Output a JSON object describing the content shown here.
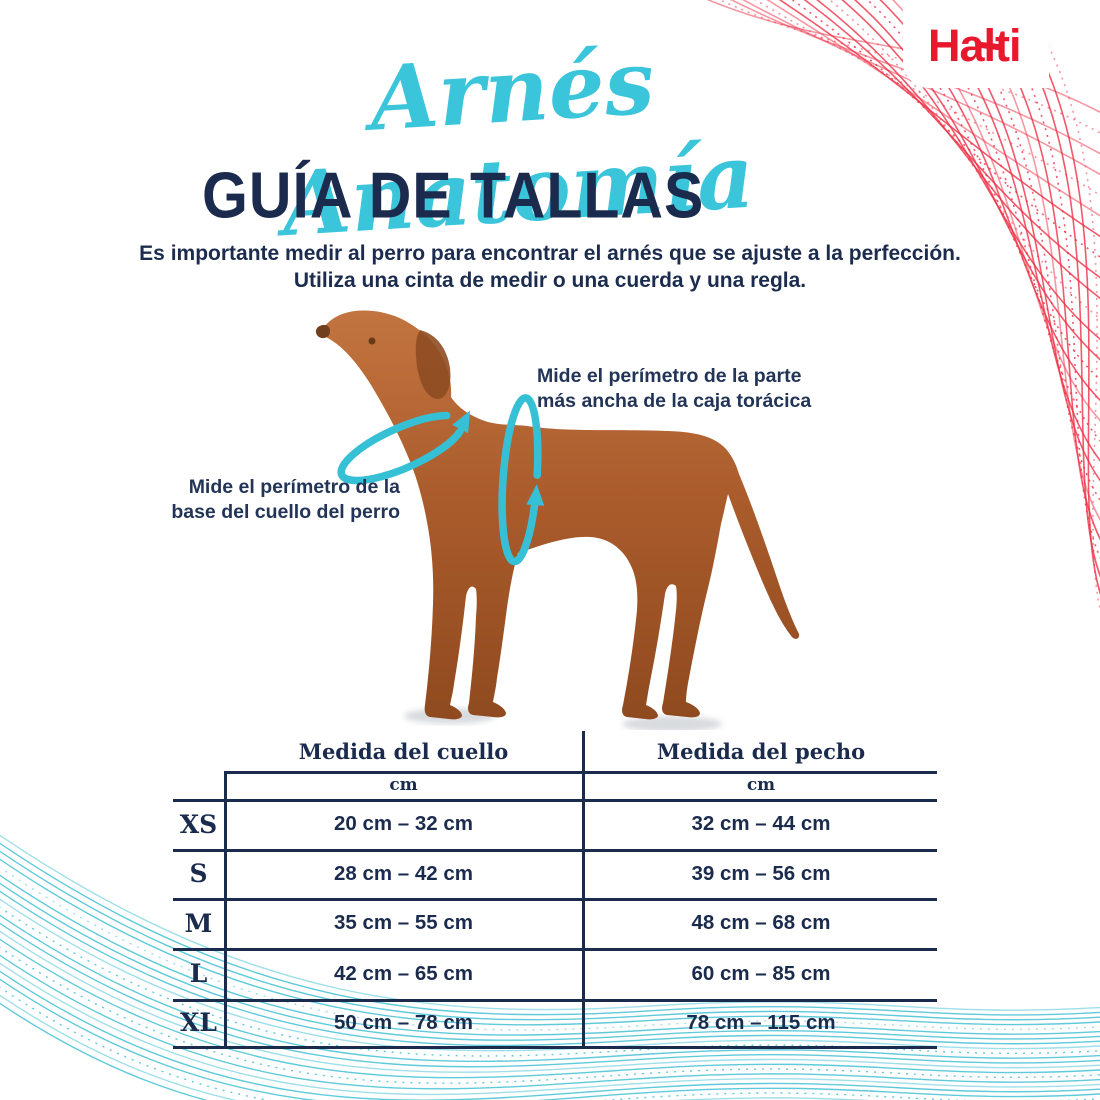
{
  "brand": {
    "logo_text": "Halti"
  },
  "header": {
    "title_script": "Arnés Anatomía",
    "title_main": "GUÍA DE TALLAS",
    "intro_line1": "Es importante medir al perro para encontrar el arnés que se ajuste a la perfección.",
    "intro_line2": "Utiliza una cinta de medir o una cuerda y una regla."
  },
  "diagram": {
    "neck_label_line1": "Mide el perímetro de la",
    "neck_label_line2": "base del cuello del perro",
    "chest_label_line1": "Mide el perímetro de la parte",
    "chest_label_line2": "más ancha de la caja torácica"
  },
  "table": {
    "col_neck": "Medida del cuello",
    "col_chest": "Medida del pecho",
    "unit_neck": "cm",
    "unit_chest": "cm",
    "rows": [
      {
        "size": "XS",
        "neck": "20 cm – 32 cm",
        "chest": "32 cm – 44 cm"
      },
      {
        "size": "S",
        "neck": "28 cm – 42 cm",
        "chest": "39 cm – 56 cm"
      },
      {
        "size": "M",
        "neck": "35 cm – 55 cm",
        "chest": "48 cm – 68 cm"
      },
      {
        "size": "L",
        "neck": "42 cm – 65 cm",
        "chest": "60 cm – 85 cm"
      },
      {
        "size": "XL",
        "neck": "50 cm – 78 cm",
        "chest": "78 cm – 115 cm"
      }
    ]
  },
  "colors": {
    "brand_red": "#e8182d",
    "navy": "#1b2b4d",
    "accent_cyan": "#3bc5da",
    "band_cyan": "#36c0d5",
    "wave_red": "#ee2f45",
    "wave_teal": "#29b8ce",
    "dog_brown": "#ab5c2c"
  }
}
